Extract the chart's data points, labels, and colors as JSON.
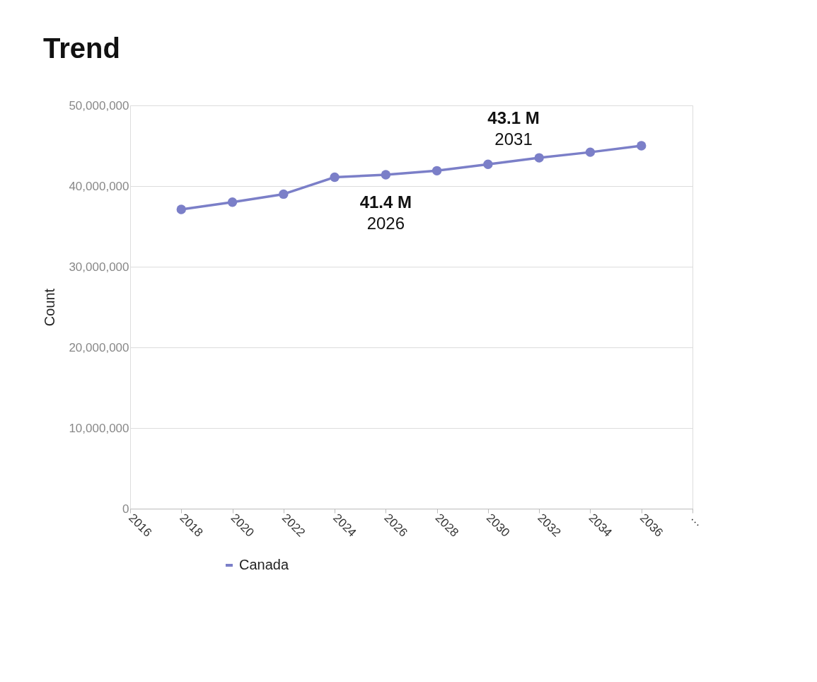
{
  "chart_data": {
    "type": "line",
    "title": "Trend",
    "ylabel": "Count",
    "x": [
      2018,
      2020,
      2022,
      2024,
      2026,
      2028,
      2030,
      2032,
      2034,
      2036
    ],
    "series": [
      {
        "name": "Canada",
        "color": "#7b7fc8",
        "values": [
          37100000,
          38000000,
          39000000,
          41100000,
          41400000,
          41900000,
          42700000,
          43500000,
          44200000,
          45000000
        ]
      }
    ],
    "xlim": [
      2016,
      2038
    ],
    "xticks": [
      2016,
      2018,
      2020,
      2022,
      2024,
      2026,
      2028,
      2030,
      2032,
      2034,
      2036,
      {
        "value": 2038,
        "label": "…"
      }
    ],
    "ylim": [
      0,
      50000000
    ],
    "yticks": [
      {
        "value": 0,
        "label": "0"
      },
      {
        "value": 10000000,
        "label": "10,000,000"
      },
      {
        "value": 20000000,
        "label": "20,000,000"
      },
      {
        "value": 30000000,
        "label": "30,000,000"
      },
      {
        "value": 40000000,
        "label": "40,000,000"
      },
      {
        "value": 50000000,
        "label": "50,000,000"
      }
    ],
    "annotations": [
      {
        "text": "41.4 M\n2026",
        "x": 2026,
        "y": 41400000
      },
      {
        "text": "43.1 M\n2031",
        "x": 2031,
        "y": 43100000
      }
    ],
    "grid": "y",
    "legend": "bottom left",
    "marker": "circle",
    "line_style": "solid"
  }
}
